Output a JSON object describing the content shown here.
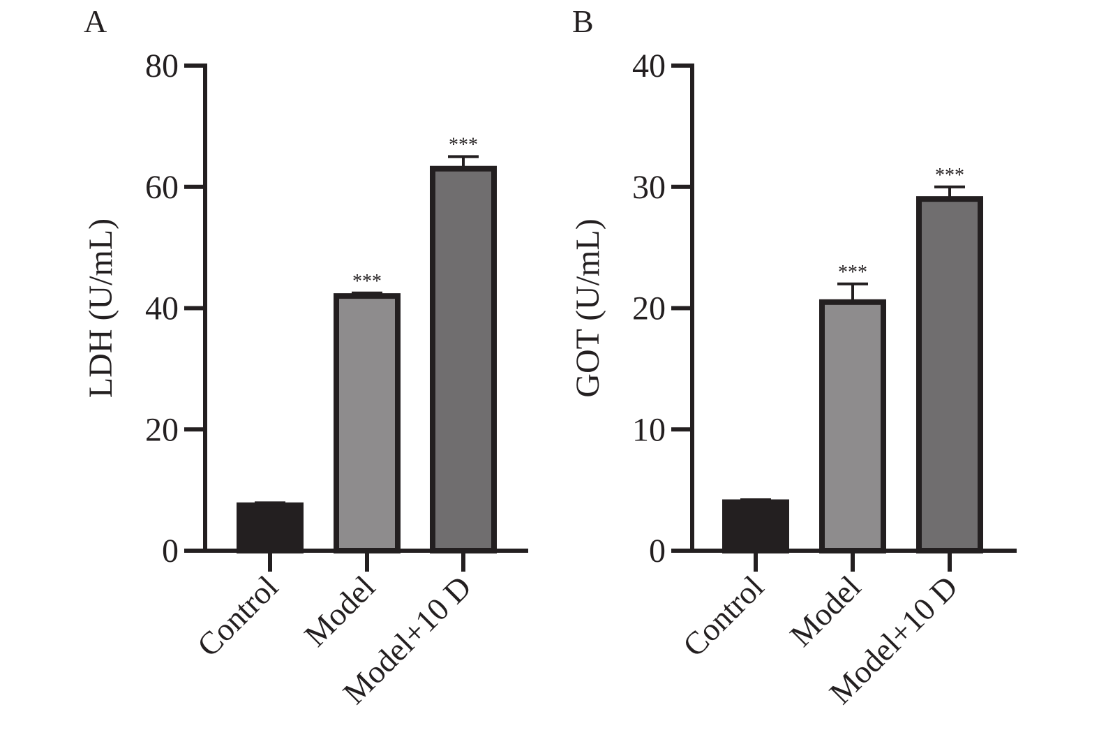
{
  "chart_data": [
    {
      "panel_label": "A",
      "type": "bar",
      "categories": [
        "Control",
        "Model",
        "Model+10 D"
      ],
      "values": [
        7.5,
        42,
        63
      ],
      "errors": [
        0.4,
        0.5,
        2
      ],
      "significance": [
        "",
        "***",
        "***"
      ],
      "ylabel": "LDH (U/mL)",
      "xlabel": "",
      "ylim": [
        0,
        80
      ],
      "yticks": [
        0,
        20,
        40,
        60,
        80
      ],
      "colors": [
        "#231f20",
        "#8e8c8d",
        "#706e6f"
      ]
    },
    {
      "panel_label": "B",
      "type": "bar",
      "categories": [
        "Control",
        "Model",
        "Model+10 D"
      ],
      "values": [
        4,
        20.5,
        29
      ],
      "errors": [
        0.2,
        1.5,
        1
      ],
      "significance": [
        "",
        "***",
        "***"
      ],
      "ylabel": "GOT (U/mL)",
      "xlabel": "",
      "ylim": [
        0,
        40
      ],
      "yticks": [
        0,
        10,
        20,
        30,
        40
      ],
      "colors": [
        "#231f20",
        "#8e8c8d",
        "#706e6f"
      ]
    }
  ]
}
